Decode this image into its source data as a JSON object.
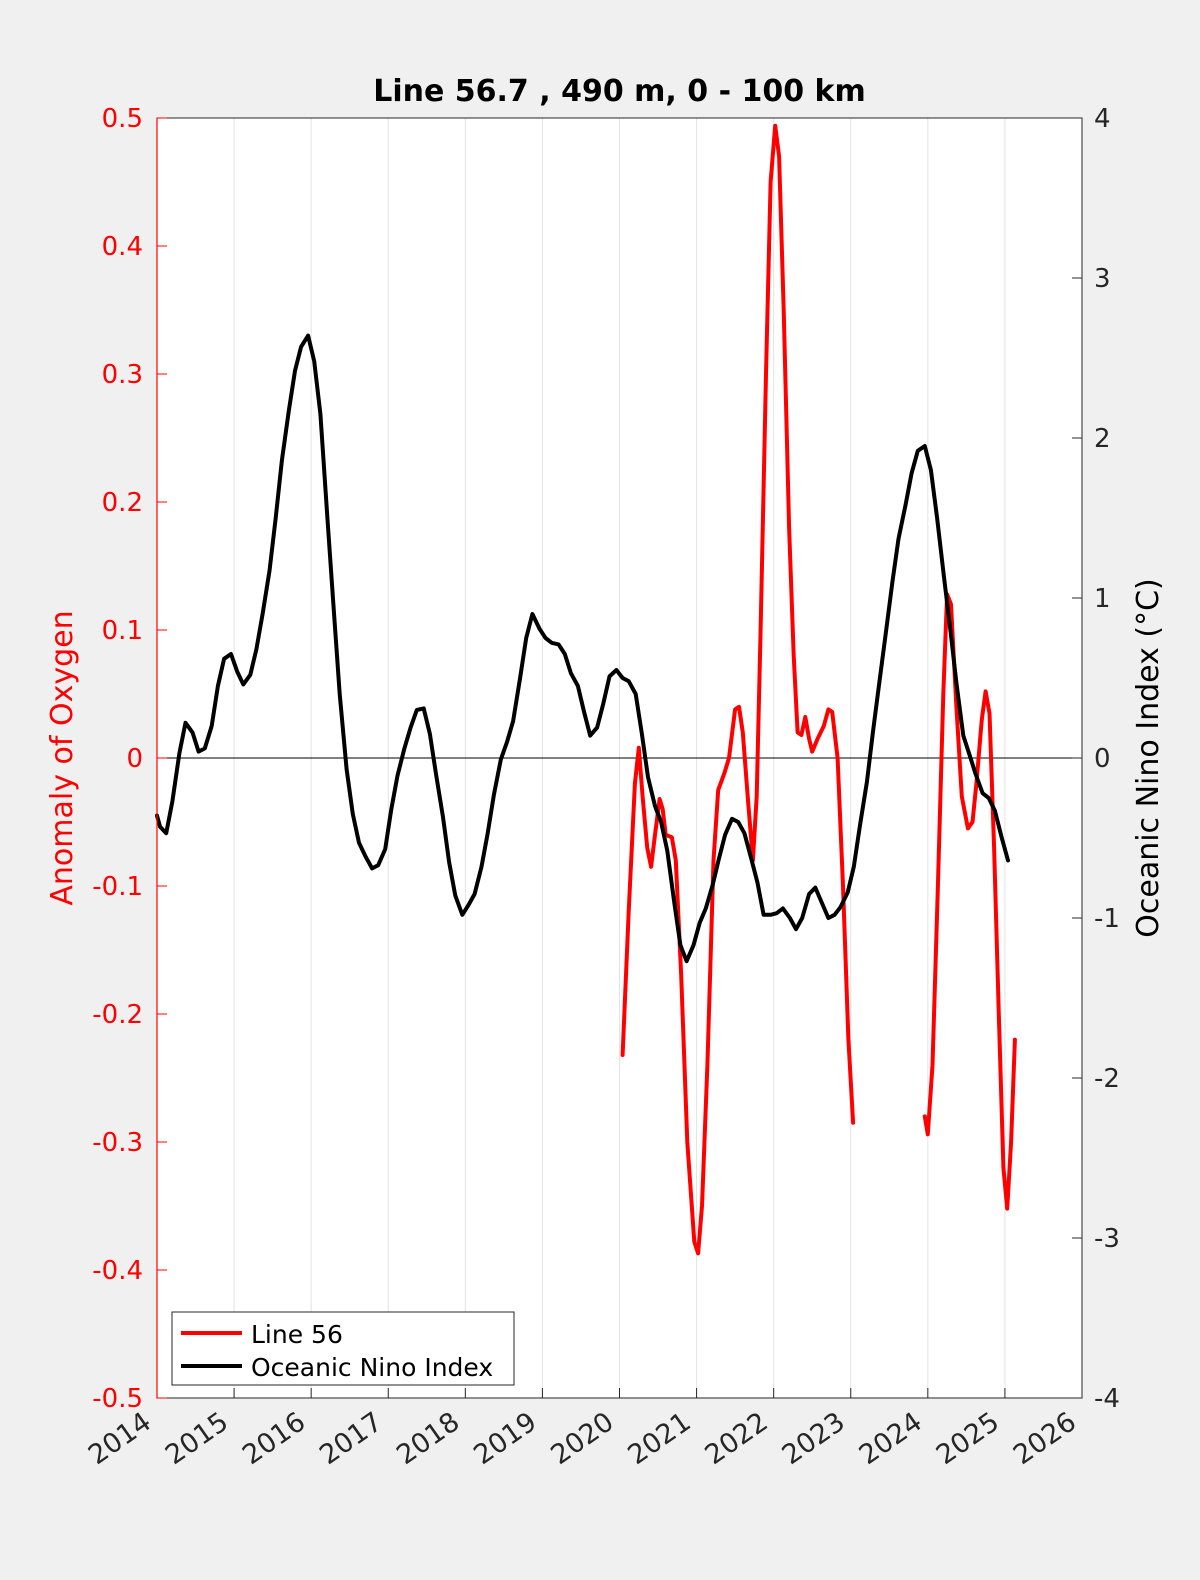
{
  "chart_data": {
    "type": "line",
    "title": "Line 56.7 , 490 m, 0 - 100 km",
    "xlabel": "",
    "ylabel": "Anomaly of Oxygen",
    "y2label": "Oceanic Nino Index (°C)",
    "xlim": [
      2014,
      2026
    ],
    "ylim": [
      -0.5,
      0.5
    ],
    "y2lim": [
      -4,
      4
    ],
    "x_ticks": [
      "2014",
      "2015",
      "2016",
      "2017",
      "2018",
      "2019",
      "2020",
      "2021",
      "2022",
      "2023",
      "2024",
      "2025",
      "2026"
    ],
    "y_ticks": [
      "-0.5",
      "-0.4",
      "-0.3",
      "-0.2",
      "-0.1",
      "0",
      "0.1",
      "0.2",
      "0.3",
      "0.4",
      "0.5"
    ],
    "y2_ticks": [
      "-4",
      "-3",
      "-2",
      "-1",
      "0",
      "1",
      "2",
      "3",
      "4"
    ],
    "grid": "vertical",
    "legend_position": "bottom-left",
    "colors": {
      "line56": "#ff0000",
      "oni": "#000000",
      "axis_left": "#ff0000",
      "axis_right": "#000000"
    },
    "series": [
      {
        "name": "Line 56",
        "axis": "left",
        "color": "#ff0000",
        "segments": [
          [
            [
              2020.04,
              -0.232
            ],
            [
              2020.12,
              -0.12
            ],
            [
              2020.2,
              -0.02
            ],
            [
              2020.25,
              0.008
            ],
            [
              2020.3,
              -0.03
            ],
            [
              2020.36,
              -0.07
            ],
            [
              2020.41,
              -0.085
            ],
            [
              2020.46,
              -0.06
            ],
            [
              2020.52,
              -0.032
            ],
            [
              2020.56,
              -0.04
            ],
            [
              2020.6,
              -0.06
            ],
            [
              2020.68,
              -0.062
            ],
            [
              2020.73,
              -0.08
            ],
            [
              2020.8,
              -0.17
            ],
            [
              2020.88,
              -0.3
            ],
            [
              2020.97,
              -0.378
            ],
            [
              2021.02,
              -0.387
            ],
            [
              2021.07,
              -0.35
            ],
            [
              2021.14,
              -0.24
            ],
            [
              2021.22,
              -0.08
            ],
            [
              2021.28,
              -0.025
            ],
            [
              2021.36,
              -0.012
            ],
            [
              2021.42,
              0.0
            ],
            [
              2021.5,
              0.038
            ],
            [
              2021.55,
              0.04
            ],
            [
              2021.6,
              0.02
            ],
            [
              2021.67,
              -0.035
            ],
            [
              2021.73,
              -0.08
            ],
            [
              2021.78,
              -0.03
            ],
            [
              2021.83,
              0.1
            ],
            [
              2021.9,
              0.3
            ],
            [
              2021.96,
              0.45
            ],
            [
              2022.02,
              0.494
            ],
            [
              2022.07,
              0.47
            ],
            [
              2022.13,
              0.35
            ],
            [
              2022.2,
              0.18
            ],
            [
              2022.26,
              0.08
            ],
            [
              2022.31,
              0.02
            ],
            [
              2022.36,
              0.018
            ],
            [
              2022.41,
              0.032
            ],
            [
              2022.46,
              0.015
            ],
            [
              2022.5,
              0.005
            ],
            [
              2022.57,
              0.015
            ],
            [
              2022.65,
              0.025
            ],
            [
              2022.71,
              0.038
            ],
            [
              2022.76,
              0.036
            ],
            [
              2022.83,
              0.0
            ],
            [
              2022.9,
              -0.1
            ],
            [
              2022.97,
              -0.22
            ],
            [
              2023.03,
              -0.285
            ]
          ],
          [
            [
              2023.96,
              -0.28
            ],
            [
              2024.0,
              -0.294
            ],
            [
              2024.06,
              -0.24
            ],
            [
              2024.13,
              -0.1
            ],
            [
              2024.2,
              0.05
            ],
            [
              2024.25,
              0.128
            ],
            [
              2024.3,
              0.12
            ],
            [
              2024.37,
              0.04
            ],
            [
              2024.44,
              -0.03
            ],
            [
              2024.52,
              -0.055
            ],
            [
              2024.58,
              -0.05
            ],
            [
              2024.63,
              -0.02
            ],
            [
              2024.7,
              0.03
            ],
            [
              2024.75,
              0.052
            ],
            [
              2024.8,
              0.035
            ],
            [
              2024.86,
              -0.07
            ],
            [
              2024.92,
              -0.2
            ],
            [
              2024.98,
              -0.32
            ],
            [
              2025.03,
              -0.352
            ],
            [
              2025.08,
              -0.3
            ],
            [
              2025.13,
              -0.22
            ]
          ]
        ]
      },
      {
        "name": "Oceanic Nino Index",
        "axis": "right",
        "color": "#000000",
        "points": [
          [
            2014.0,
            -0.36
          ],
          [
            2014.04,
            -0.43
          ],
          [
            2014.12,
            -0.47
          ],
          [
            2014.2,
            -0.27
          ],
          [
            2014.29,
            0.03
          ],
          [
            2014.37,
            0.22
          ],
          [
            2014.46,
            0.16
          ],
          [
            2014.54,
            0.04
          ],
          [
            2014.62,
            0.06
          ],
          [
            2014.71,
            0.2
          ],
          [
            2014.79,
            0.45
          ],
          [
            2014.87,
            0.62
          ],
          [
            2014.96,
            0.65
          ],
          [
            2015.04,
            0.54
          ],
          [
            2015.12,
            0.46
          ],
          [
            2015.21,
            0.52
          ],
          [
            2015.29,
            0.68
          ],
          [
            2015.37,
            0.9
          ],
          [
            2015.46,
            1.17
          ],
          [
            2015.54,
            1.5
          ],
          [
            2015.62,
            1.86
          ],
          [
            2015.71,
            2.17
          ],
          [
            2015.79,
            2.42
          ],
          [
            2015.87,
            2.57
          ],
          [
            2015.96,
            2.64
          ],
          [
            2016.04,
            2.48
          ],
          [
            2016.12,
            2.15
          ],
          [
            2016.21,
            1.5
          ],
          [
            2016.29,
            0.95
          ],
          [
            2016.37,
            0.4
          ],
          [
            2016.46,
            -0.07
          ],
          [
            2016.54,
            -0.35
          ],
          [
            2016.62,
            -0.53
          ],
          [
            2016.71,
            -0.62
          ],
          [
            2016.79,
            -0.69
          ],
          [
            2016.87,
            -0.67
          ],
          [
            2016.96,
            -0.57
          ],
          [
            2017.04,
            -0.32
          ],
          [
            2017.12,
            -0.11
          ],
          [
            2017.21,
            0.06
          ],
          [
            2017.29,
            0.19
          ],
          [
            2017.37,
            0.3
          ],
          [
            2017.46,
            0.31
          ],
          [
            2017.54,
            0.15
          ],
          [
            2017.62,
            -0.1
          ],
          [
            2017.71,
            -0.37
          ],
          [
            2017.79,
            -0.65
          ],
          [
            2017.87,
            -0.86
          ],
          [
            2017.96,
            -0.98
          ],
          [
            2018.04,
            -0.92
          ],
          [
            2018.12,
            -0.85
          ],
          [
            2018.21,
            -0.68
          ],
          [
            2018.29,
            -0.47
          ],
          [
            2018.37,
            -0.23
          ],
          [
            2018.46,
            -0.01
          ],
          [
            2018.54,
            0.1
          ],
          [
            2018.62,
            0.23
          ],
          [
            2018.71,
            0.5
          ],
          [
            2018.79,
            0.75
          ],
          [
            2018.87,
            0.9
          ],
          [
            2018.96,
            0.81
          ],
          [
            2019.04,
            0.75
          ],
          [
            2019.12,
            0.72
          ],
          [
            2019.21,
            0.71
          ],
          [
            2019.29,
            0.65
          ],
          [
            2019.37,
            0.53
          ],
          [
            2019.46,
            0.45
          ],
          [
            2019.54,
            0.29
          ],
          [
            2019.62,
            0.14
          ],
          [
            2019.71,
            0.19
          ],
          [
            2019.79,
            0.34
          ],
          [
            2019.87,
            0.51
          ],
          [
            2019.96,
            0.55
          ],
          [
            2020.04,
            0.5
          ],
          [
            2020.12,
            0.48
          ],
          [
            2020.21,
            0.4
          ],
          [
            2020.29,
            0.15
          ],
          [
            2020.37,
            -0.12
          ],
          [
            2020.46,
            -0.3
          ],
          [
            2020.54,
            -0.4
          ],
          [
            2020.62,
            -0.58
          ],
          [
            2020.71,
            -0.9
          ],
          [
            2020.79,
            -1.17
          ],
          [
            2020.87,
            -1.27
          ],
          [
            2020.96,
            -1.17
          ],
          [
            2021.04,
            -1.03
          ],
          [
            2021.12,
            -0.94
          ],
          [
            2021.21,
            -0.79
          ],
          [
            2021.29,
            -0.63
          ],
          [
            2021.37,
            -0.48
          ],
          [
            2021.46,
            -0.38
          ],
          [
            2021.54,
            -0.4
          ],
          [
            2021.62,
            -0.47
          ],
          [
            2021.71,
            -0.63
          ],
          [
            2021.79,
            -0.78
          ],
          [
            2021.87,
            -0.98
          ],
          [
            2021.96,
            -0.98
          ],
          [
            2022.04,
            -0.97
          ],
          [
            2022.12,
            -0.94
          ],
          [
            2022.21,
            -1.0
          ],
          [
            2022.29,
            -1.07
          ],
          [
            2022.37,
            -1.0
          ],
          [
            2022.46,
            -0.85
          ],
          [
            2022.54,
            -0.81
          ],
          [
            2022.62,
            -0.9
          ],
          [
            2022.71,
            -1.0
          ],
          [
            2022.79,
            -0.98
          ],
          [
            2022.87,
            -0.93
          ],
          [
            2022.96,
            -0.84
          ],
          [
            2023.04,
            -0.68
          ],
          [
            2023.12,
            -0.42
          ],
          [
            2023.21,
            -0.15
          ],
          [
            2023.29,
            0.17
          ],
          [
            2023.37,
            0.47
          ],
          [
            2023.46,
            0.8
          ],
          [
            2023.54,
            1.1
          ],
          [
            2023.62,
            1.37
          ],
          [
            2023.71,
            1.58
          ],
          [
            2023.79,
            1.78
          ],
          [
            2023.87,
            1.92
          ],
          [
            2023.96,
            1.95
          ],
          [
            2024.04,
            1.8
          ],
          [
            2024.12,
            1.5
          ],
          [
            2024.21,
            1.13
          ],
          [
            2024.29,
            0.81
          ],
          [
            2024.37,
            0.47
          ],
          [
            2024.46,
            0.14
          ],
          [
            2024.54,
            0.02
          ],
          [
            2024.62,
            -0.1
          ],
          [
            2024.71,
            -0.22
          ],
          [
            2024.79,
            -0.25
          ],
          [
            2024.87,
            -0.33
          ],
          [
            2024.96,
            -0.5
          ],
          [
            2025.04,
            -0.64
          ]
        ]
      }
    ]
  },
  "legend": {
    "items": [
      "Line 56",
      "Oceanic Nino Index"
    ]
  }
}
